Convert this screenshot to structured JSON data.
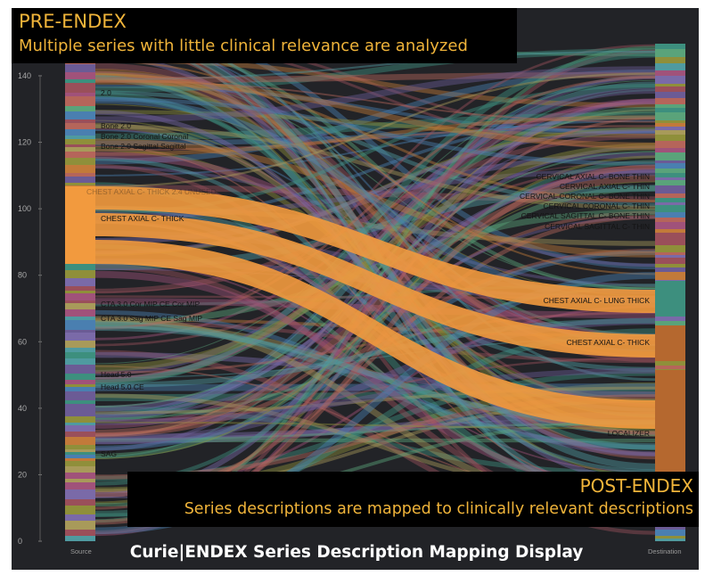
{
  "pre_endex": {
    "title": "PRE-ENDEX",
    "subtitle": "Multiple series with little clinical relevance are analyzed"
  },
  "post_endex": {
    "title": "POST-ENDEX",
    "subtitle": "Series descriptions are mapped to clinically relevant descriptions"
  },
  "footer_title": "Curie|ENDEX Series Description Mapping Display",
  "axis": {
    "ticks": [
      "0",
      "20",
      "40",
      "60",
      "80",
      "100",
      "120",
      "140"
    ],
    "source_label": "Source",
    "destination_label": "Destination"
  },
  "source_labels": [
    "2.0",
    "Bone 2.0",
    "Bone 2.0 Coronal  Coronal",
    "Bone 2.0 Sagittal  Sagittal",
    "CHEST AXIAL C- THICK 2.4 UNUSED",
    "CHEST AXIAL C- THICK",
    "CTA 3.0 Cor MIP CE  Cor MIP",
    "CTA 3.0 Sag MIP CE  Sag MIP",
    "Head 5.0",
    "Head 5.0  CE",
    "SAG"
  ],
  "destination_labels": [
    "CERVICAL AXIAL C- BONE THIN",
    "CERVICAL AXIAL C- THIN",
    "CERVICAL CORONAL C- BONE THIN",
    "CERVICAL CORONAL C- THIN",
    "CERVICAL SAGITTAL C- BONE THIN",
    "CERVICAL SAGITTAL C- THIN",
    "CHEST AXIAL C- LUNG THICK",
    "CHEST AXIAL C- THICK",
    "LOCALIZER"
  ],
  "colors": {
    "background": "#222327",
    "highlight_flow": "#f29a3e",
    "overlay_text": "#f0b43a",
    "palette": [
      "#3d8f7e",
      "#6b5b95",
      "#b5655a",
      "#4a7fb0",
      "#8f8f3a",
      "#a0527a",
      "#5aa37a",
      "#c27a3a",
      "#7a6aa8",
      "#4f9aa0",
      "#a89a5a",
      "#9a4f5a"
    ]
  }
}
